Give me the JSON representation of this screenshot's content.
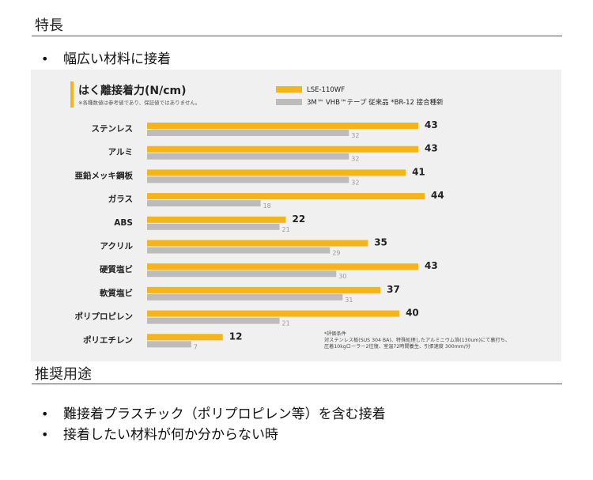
{
  "sections": {
    "features_heading": "特長",
    "features_items": [
      "幅広い材料に接着"
    ],
    "usage_heading": "推奨用途",
    "usage_items": [
      "難接着プラスチック（ポリプロピレン等）を含む接着",
      "接着したい材料が何か分からない時"
    ],
    "bullet_glyph": "•"
  },
  "colors": {
    "accent": "#f5b41a",
    "secondary": "#bcbcbc",
    "panel": "#f0f0f0"
  },
  "chart_data": {
    "type": "bar",
    "orientation": "horizontal",
    "title": "はく離接着力(N/cm)",
    "subtitle": "※各種数値は参考値であり、保証値ではありません。",
    "categories": [
      "ステンレス",
      "アルミ",
      "亜鉛メッキ鋼板",
      "ガラス",
      "ABS",
      "アクリル",
      "硬質塩ビ",
      "軟質塩ビ",
      "ポリプロピレン",
      "ポリエチレン"
    ],
    "series": [
      {
        "name": "LSE-110WF",
        "color": "#f5b41a",
        "values": [
          43,
          43,
          41,
          44,
          22,
          35,
          43,
          37,
          40,
          12
        ]
      },
      {
        "name": "3M™ VHB™テープ 従来品 *BR-12 接合種新",
        "color": "#bcbcbc",
        "values": [
          32,
          32,
          32,
          18,
          21,
          29,
          30,
          31,
          21,
          7
        ]
      }
    ],
    "xlim": [
      0,
      44
    ],
    "legend_position": "top-right",
    "note": [
      "*評価条件",
      "対ステンレス板(SUS 304 BA)、特殊処理したアルミニウム箔(130um)にて裏打ち、",
      "圧着10kgローラー2往復、室温72時間養生、引張速度 300mm/分"
    ]
  }
}
